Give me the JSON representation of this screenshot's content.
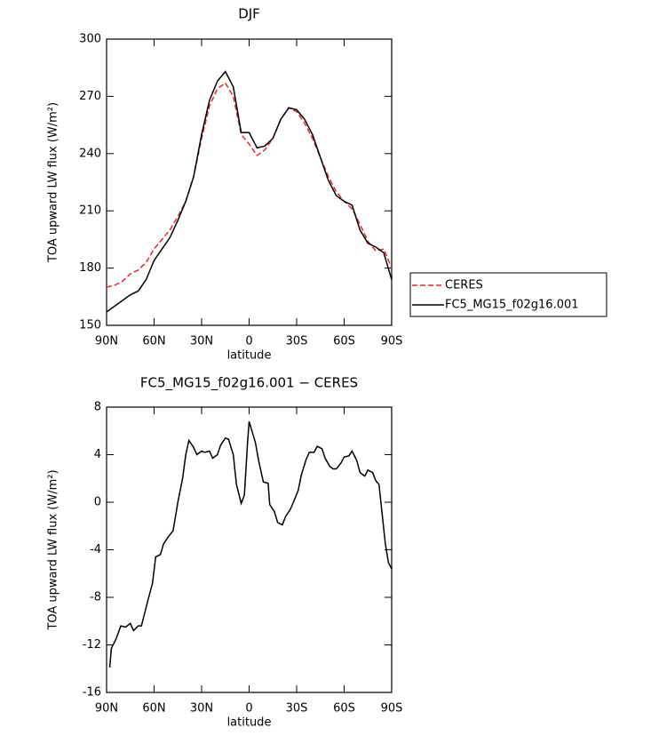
{
  "chart_data": [
    {
      "type": "line",
      "title": "DJF",
      "xlabel": "latitude",
      "ylabel": "TOA upward LW flux (W/m²)",
      "x": [
        90,
        85,
        80,
        75,
        70,
        65,
        60,
        55,
        50,
        45,
        40,
        35,
        30,
        25,
        20,
        15,
        10,
        5,
        0,
        -5,
        -10,
        -15,
        -20,
        -25,
        -30,
        -35,
        -40,
        -45,
        -50,
        -55,
        -60,
        -65,
        -70,
        -75,
        -80,
        -85,
        -90
      ],
      "series": [
        {
          "name": "CERES",
          "color": "#e8262b",
          "dashed": true,
          "values": [
            170,
            171,
            173,
            177,
            179,
            183,
            190,
            195,
            200,
            207,
            215,
            228,
            248,
            265,
            274,
            277,
            270,
            250,
            245,
            239,
            242,
            248,
            258,
            264,
            262,
            256,
            248,
            238,
            228,
            220,
            215,
            211,
            203,
            194,
            189,
            190,
            180
          ]
        },
        {
          "name": "FC5_MG15_f02g16.001",
          "color": "#000000",
          "dashed": false,
          "values": [
            157,
            160,
            163,
            166,
            168,
            174,
            184,
            190,
            196,
            205,
            215,
            228,
            250,
            268,
            278,
            283,
            275,
            251,
            251,
            243,
            244,
            248,
            258,
            264,
            263,
            258,
            250,
            238,
            226,
            218,
            215,
            213,
            200,
            193,
            191,
            188,
            174
          ]
        }
      ],
      "xlim": [
        90,
        -90
      ],
      "xticks": [
        {
          "value": 90,
          "label": "90N"
        },
        {
          "value": 60,
          "label": "60N"
        },
        {
          "value": 30,
          "label": "30N"
        },
        0,
        {
          "value": -30,
          "label": "30S"
        },
        {
          "value": -60,
          "label": "60S"
        },
        {
          "value": -90,
          "label": "90S"
        }
      ],
      "ylim": [
        150,
        300
      ],
      "yticks": [
        150,
        180,
        210,
        240,
        270,
        300
      ],
      "legend": "right"
    },
    {
      "type": "line",
      "title": "FC5_MG15_f02g16.001 − CERES",
      "xlabel": "latitude",
      "ylabel": "TOA upward LW flux (W/m²)",
      "x": [
        88,
        87,
        84,
        81,
        78,
        75,
        73,
        70,
        68,
        64,
        61,
        59,
        56,
        54,
        51,
        48,
        45,
        42,
        40,
        38,
        35,
        33,
        30,
        28,
        25,
        23,
        20,
        18,
        15,
        13,
        10,
        8,
        5,
        3,
        1,
        0,
        -4,
        -6,
        -9,
        -12,
        -13,
        -16,
        -18,
        -21,
        -23,
        -26,
        -28,
        -31,
        -33,
        -36,
        -38,
        -41,
        -43,
        -46,
        -48,
        -51,
        -53,
        -55,
        -58,
        -60,
        -63,
        -65,
        -68,
        -70,
        -73,
        -75,
        -78,
        -80,
        -82,
        -84,
        -86,
        -88,
        -90
      ],
      "series": [
        {
          "color": "#000000",
          "dashed": false,
          "values": [
            -13.9,
            -12.3,
            -11.5,
            -10.4,
            -10.5,
            -10.2,
            -10.8,
            -10.4,
            -10.4,
            -8.3,
            -6.8,
            -4.6,
            -4.4,
            -3.5,
            -2.9,
            -2.4,
            0,
            2,
            4,
            5.2,
            4.6,
            4,
            4.3,
            4.2,
            4.3,
            3.7,
            4,
            4.8,
            5.4,
            5.3,
            4,
            1.5,
            -0.1,
            0.6,
            5,
            6.8,
            5,
            3.5,
            1.7,
            1.6,
            -0.2,
            -0.8,
            -1.7,
            -1.9,
            -1.2,
            -0.6,
            0,
            1,
            2.3,
            3.6,
            4.2,
            4.2,
            4.7,
            4.5,
            3.7,
            3,
            2.8,
            2.8,
            3.3,
            3.8,
            3.9,
            4.3,
            3.5,
            2.5,
            2.2,
            2.7,
            2.5,
            1.8,
            1.5,
            -1,
            -3.5,
            -5.1,
            -5.6
          ]
        }
      ],
      "xlim": [
        90,
        -90
      ],
      "xticks": [
        {
          "value": 90,
          "label": "90N"
        },
        {
          "value": 60,
          "label": "60N"
        },
        {
          "value": 30,
          "label": "30N"
        },
        0,
        {
          "value": -30,
          "label": "30S"
        },
        {
          "value": -60,
          "label": "60S"
        },
        {
          "value": -90,
          "label": "90S"
        }
      ],
      "ylim": [
        -16,
        8
      ],
      "yticks": [
        -16,
        -12,
        -8,
        -4,
        0,
        4,
        8
      ]
    }
  ]
}
